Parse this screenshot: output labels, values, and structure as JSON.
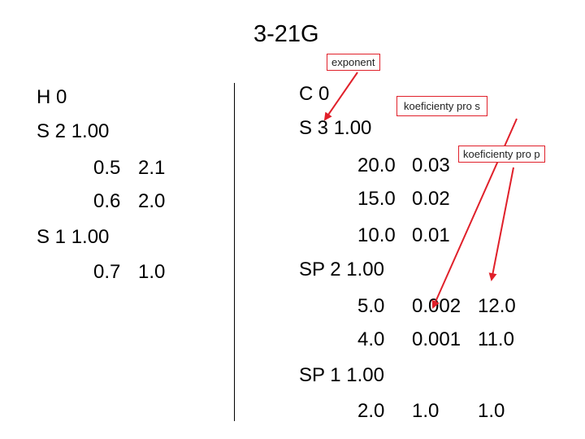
{
  "title": "3-21G",
  "callouts": {
    "exponent": "exponent",
    "coef_s": "koeficienty pro s",
    "coef_p": "koeficienty pro p"
  },
  "accent_color": "#e0202a",
  "hydrogen": {
    "header": "H 0",
    "shell1": "S 2 1.00",
    "rows1": [
      [
        "0.5",
        "2.1"
      ],
      [
        "0.6",
        "2.0"
      ]
    ],
    "shell2": "S 1 1.00",
    "rows2": [
      [
        "0.7",
        "1.0"
      ]
    ]
  },
  "carbon": {
    "header": "C 0",
    "shell1": "S 3 1.00",
    "rows1": [
      [
        "20.0",
        "0.03"
      ],
      [
        "15.0",
        "0.02"
      ],
      [
        "10.0",
        "0.01"
      ]
    ],
    "shell2": "SP 2 1.00",
    "rows2": [
      [
        "5.0",
        "0.002",
        "12.0"
      ],
      [
        "4.0",
        "0.001",
        "11.0"
      ]
    ],
    "shell3": "SP 1 1.00",
    "rows3": [
      [
        "2.0",
        "1.0",
        "1.0"
      ]
    ]
  }
}
